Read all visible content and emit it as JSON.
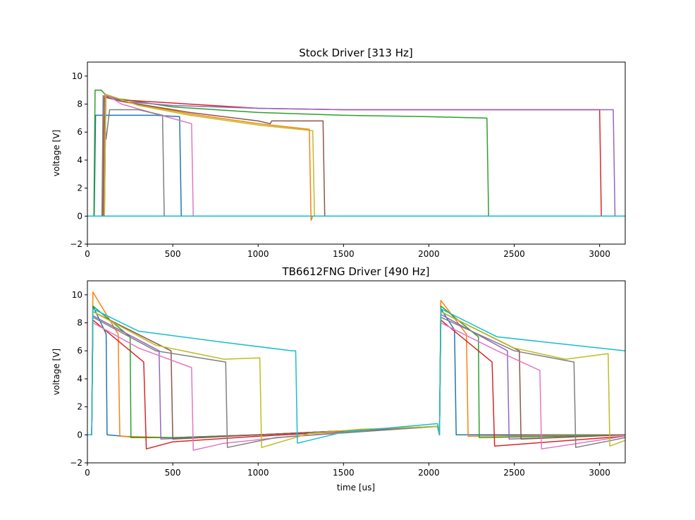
{
  "chart_data": [
    {
      "type": "line",
      "title": "Stock Driver [313 Hz]",
      "xlabel": "",
      "ylabel": "voltage [V]",
      "xlim": [
        0,
        3150
      ],
      "ylim": [
        -2,
        11
      ],
      "xticks": [
        0,
        500,
        1000,
        1500,
        2000,
        2500,
        3000
      ],
      "yticks": [
        -2,
        0,
        2,
        4,
        6,
        8,
        10
      ],
      "grid": false,
      "series": [
        {
          "color": "#1f77b4",
          "points": [
            [
              0,
              0
            ],
            [
              40,
              0
            ],
            [
              48,
              7.2
            ],
            [
              400,
              7.2
            ],
            [
              540,
              7.1
            ],
            [
              550,
              0
            ],
            [
              3150,
              0
            ]
          ]
        },
        {
          "color": "#ff7f0e",
          "points": [
            [
              0,
              0
            ],
            [
              90,
              0
            ],
            [
              98,
              8.6
            ],
            [
              200,
              8.2
            ],
            [
              600,
              7.3
            ],
            [
              1000,
              6.6
            ],
            [
              1300,
              6.2
            ],
            [
              1310,
              -0.3
            ],
            [
              1320,
              0
            ],
            [
              3150,
              0
            ]
          ]
        },
        {
          "color": "#2ca02c",
          "points": [
            [
              0,
              0
            ],
            [
              38,
              0
            ],
            [
              45,
              9.0
            ],
            [
              80,
              9.0
            ],
            [
              120,
              8.5
            ],
            [
              500,
              7.8
            ],
            [
              1000,
              7.4
            ],
            [
              1500,
              7.2
            ],
            [
              2000,
              7.1
            ],
            [
              2340,
              7.0
            ],
            [
              2350,
              0
            ],
            [
              3150,
              0
            ]
          ]
        },
        {
          "color": "#d62728",
          "points": [
            [
              0,
              0
            ],
            [
              100,
              0
            ],
            [
              108,
              8.6
            ],
            [
              200,
              8.3
            ],
            [
              1000,
              7.7
            ],
            [
              1500,
              7.6
            ],
            [
              2000,
              7.6
            ],
            [
              2500,
              7.6
            ],
            [
              3000,
              7.6
            ],
            [
              3010,
              0
            ],
            [
              3150,
              0
            ]
          ]
        },
        {
          "color": "#9467bd",
          "points": [
            [
              0,
              0
            ],
            [
              95,
              0
            ],
            [
              103,
              8.7
            ],
            [
              200,
              8.2
            ],
            [
              500,
              7.9
            ],
            [
              1000,
              7.7
            ],
            [
              1500,
              7.6
            ],
            [
              2000,
              7.6
            ],
            [
              2500,
              7.6
            ],
            [
              3080,
              7.6
            ],
            [
              3090,
              0
            ],
            [
              3150,
              0
            ]
          ]
        },
        {
          "color": "#8c564b",
          "points": [
            [
              0,
              0
            ],
            [
              92,
              0
            ],
            [
              100,
              8.5
            ],
            [
              200,
              8.2
            ],
            [
              600,
              7.4
            ],
            [
              1000,
              6.8
            ],
            [
              1070,
              6.6
            ],
            [
              1080,
              6.8
            ],
            [
              1380,
              6.8
            ],
            [
              1390,
              0
            ],
            [
              3150,
              0
            ]
          ]
        },
        {
          "color": "#e377c2",
          "points": [
            [
              0,
              0
            ],
            [
              98,
              0
            ],
            [
              105,
              8.7
            ],
            [
              200,
              8.0
            ],
            [
              400,
              7.3
            ],
            [
              610,
              6.6
            ],
            [
              620,
              0
            ],
            [
              3150,
              0
            ]
          ]
        },
        {
          "color": "#7f7f7f",
          "points": [
            [
              0,
              0
            ],
            [
              85,
              0
            ],
            [
              92,
              8.6
            ],
            [
              110,
              5.5
            ],
            [
              130,
              7.6
            ],
            [
              300,
              7.6
            ],
            [
              440,
              7.2
            ],
            [
              450,
              0
            ],
            [
              3150,
              0
            ]
          ]
        },
        {
          "color": "#bcbd22",
          "points": [
            [
              0,
              0
            ],
            [
              100,
              0
            ],
            [
              108,
              8.7
            ],
            [
              300,
              7.9
            ],
            [
              600,
              7.2
            ],
            [
              1000,
              6.5
            ],
            [
              1320,
              6.1
            ],
            [
              1330,
              0
            ],
            [
              3150,
              0
            ]
          ]
        },
        {
          "color": "#17becf",
          "points": [
            [
              0,
              0
            ],
            [
              3150,
              0
            ]
          ]
        }
      ]
    },
    {
      "type": "line",
      "title": "TB6612FNG Driver [490 Hz]",
      "xlabel": "time [us]",
      "ylabel": "voltage [V]",
      "xlim": [
        0,
        3150
      ],
      "ylim": [
        -2,
        11
      ],
      "xticks": [
        0,
        500,
        1000,
        1500,
        2000,
        2500,
        3000
      ],
      "yticks": [
        -2,
        0,
        2,
        4,
        6,
        8,
        10
      ],
      "grid": false,
      "series": [
        {
          "color": "#1f77b4",
          "points": [
            [
              0,
              0
            ],
            [
              25,
              0
            ],
            [
              32,
              9.2
            ],
            [
              110,
              7.2
            ],
            [
              115,
              0
            ],
            [
              300,
              -0.2
            ],
            [
              500,
              -0.2
            ],
            [
              1000,
              0
            ],
            [
              2050,
              0.6
            ],
            [
              2062,
              0
            ],
            [
              2070,
              9.0
            ],
            [
              2150,
              7.5
            ],
            [
              2160,
              0
            ],
            [
              3150,
              0
            ],
            [
              3150,
              0
            ]
          ]
        },
        {
          "color": "#ff7f0e",
          "points": [
            [
              0,
              0
            ],
            [
              25,
              0
            ],
            [
              32,
              10.2
            ],
            [
              180,
              7.2
            ],
            [
              190,
              -0.1
            ],
            [
              500,
              -0.2
            ],
            [
              1000,
              0
            ],
            [
              2050,
              0.6
            ],
            [
              2062,
              0
            ],
            [
              2070,
              9.6
            ],
            [
              2220,
              7.2
            ],
            [
              2230,
              -0.1
            ],
            [
              3150,
              0
            ]
          ]
        },
        {
          "color": "#2ca02c",
          "points": [
            [
              0,
              0
            ],
            [
              25,
              0
            ],
            [
              32,
              9.2
            ],
            [
              250,
              7.0
            ],
            [
              255,
              -0.2
            ],
            [
              500,
              -0.2
            ],
            [
              1000,
              0
            ],
            [
              2050,
              0.6
            ],
            [
              2062,
              0
            ],
            [
              2070,
              9.2
            ],
            [
              2290,
              7.0
            ],
            [
              2295,
              -0.2
            ],
            [
              3150,
              0
            ]
          ]
        },
        {
          "color": "#d62728",
          "points": [
            [
              0,
              0
            ],
            [
              25,
              0
            ],
            [
              32,
              8.2
            ],
            [
              330,
              5.2
            ],
            [
              345,
              -1.0
            ],
            [
              500,
              -0.5
            ],
            [
              1000,
              -0.1
            ],
            [
              2050,
              0.6
            ],
            [
              2062,
              0
            ],
            [
              2070,
              8.2
            ],
            [
              2370,
              5.2
            ],
            [
              2385,
              -0.8
            ],
            [
              3150,
              -0.1
            ]
          ]
        },
        {
          "color": "#9467bd",
          "points": [
            [
              0,
              0
            ],
            [
              25,
              0
            ],
            [
              32,
              8.5
            ],
            [
              420,
              6.0
            ],
            [
              430,
              -0.3
            ],
            [
              1000,
              0
            ],
            [
              2050,
              0.6
            ],
            [
              2062,
              0
            ],
            [
              2070,
              8.6
            ],
            [
              2460,
              6.0
            ],
            [
              2470,
              -0.3
            ],
            [
              3150,
              0
            ]
          ]
        },
        {
          "color": "#8c564b",
          "points": [
            [
              0,
              0
            ],
            [
              25,
              0
            ],
            [
              32,
              8.8
            ],
            [
              490,
              6.0
            ],
            [
              500,
              -0.3
            ],
            [
              1000,
              0
            ],
            [
              2050,
              0.6
            ],
            [
              2062,
              0
            ],
            [
              2070,
              8.8
            ],
            [
              2530,
              6.0
            ],
            [
              2540,
              -0.3
            ],
            [
              3150,
              0
            ]
          ]
        },
        {
          "color": "#e377c2",
          "points": [
            [
              0,
              0
            ],
            [
              25,
              0
            ],
            [
              32,
              8.0
            ],
            [
              300,
              6.2
            ],
            [
              610,
              4.8
            ],
            [
              620,
              -1.1
            ],
            [
              800,
              -0.6
            ],
            [
              1200,
              -0.1
            ],
            [
              2050,
              0.6
            ],
            [
              2062,
              0
            ],
            [
              2070,
              8.0
            ],
            [
              2400,
              6.0
            ],
            [
              2650,
              4.6
            ],
            [
              2660,
              -1.0
            ],
            [
              3150,
              -0.1
            ]
          ]
        },
        {
          "color": "#7f7f7f",
          "points": [
            [
              0,
              0
            ],
            [
              25,
              0
            ],
            [
              32,
              8.4
            ],
            [
              400,
              6.0
            ],
            [
              810,
              5.2
            ],
            [
              820,
              -0.9
            ],
            [
              1100,
              -0.2
            ],
            [
              2050,
              0.6
            ],
            [
              2062,
              0
            ],
            [
              2070,
              8.4
            ],
            [
              2500,
              6.0
            ],
            [
              2850,
              5.2
            ],
            [
              2860,
              -0.9
            ],
            [
              3150,
              -0.2
            ]
          ]
        },
        {
          "color": "#bcbd22",
          "points": [
            [
              0,
              0
            ],
            [
              25,
              0
            ],
            [
              32,
              8.8
            ],
            [
              400,
              6.4
            ],
            [
              800,
              5.4
            ],
            [
              1010,
              5.5
            ],
            [
              1020,
              -0.9
            ],
            [
              1300,
              0.1
            ],
            [
              1600,
              0.4
            ],
            [
              2050,
              0.6
            ],
            [
              2062,
              0
            ],
            [
              2070,
              8.8
            ],
            [
              2500,
              6.2
            ],
            [
              2800,
              5.4
            ],
            [
              3050,
              5.8
            ],
            [
              3060,
              -0.8
            ],
            [
              3150,
              -0.4
            ]
          ]
        },
        {
          "color": "#17becf",
          "points": [
            [
              0,
              0
            ],
            [
              25,
              0
            ],
            [
              32,
              9.0
            ],
            [
              300,
              7.4
            ],
            [
              800,
              6.6
            ],
            [
              1200,
              6.0
            ],
            [
              1220,
              6.0
            ],
            [
              1230,
              -0.6
            ],
            [
              1500,
              0.2
            ],
            [
              2050,
              0.8
            ],
            [
              2062,
              0
            ],
            [
              2070,
              9.0
            ],
            [
              2400,
              7.0
            ],
            [
              3150,
              6.0
            ]
          ]
        }
      ]
    }
  ]
}
